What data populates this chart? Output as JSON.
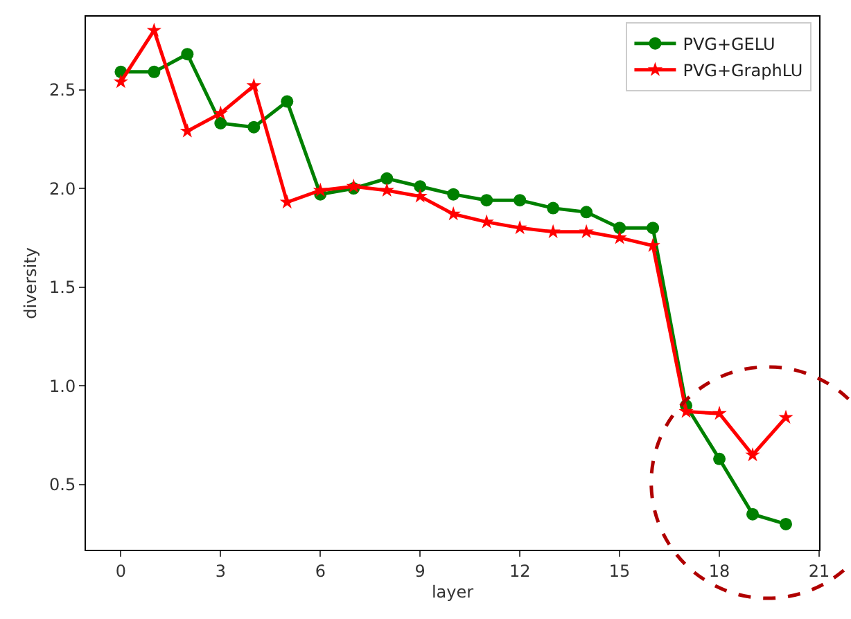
{
  "chart_data": {
    "type": "line",
    "xlabel": "layer",
    "ylabel": "diversity",
    "x": [
      0,
      1,
      2,
      3,
      4,
      5,
      6,
      7,
      8,
      9,
      10,
      11,
      12,
      13,
      14,
      15,
      16,
      17,
      18,
      19,
      20
    ],
    "series": [
      {
        "name": "PVG+GELU",
        "color": "#008000",
        "marker": "circle",
        "values": [
          2.59,
          2.59,
          2.68,
          2.33,
          2.31,
          2.44,
          1.97,
          2.0,
          2.05,
          2.01,
          1.97,
          1.94,
          1.94,
          1.9,
          1.88,
          1.8,
          1.8,
          0.9,
          0.63,
          0.35,
          0.3
        ]
      },
      {
        "name": "PVG+GraphLU",
        "color": "#ff0000",
        "marker": "star",
        "values": [
          2.54,
          2.8,
          2.29,
          2.38,
          2.52,
          1.93,
          1.99,
          2.01,
          1.99,
          1.96,
          1.87,
          1.83,
          1.8,
          1.78,
          1.78,
          1.75,
          1.71,
          0.87,
          0.86,
          0.65,
          0.84
        ]
      }
    ],
    "xlim": [
      -1.05,
      21
    ],
    "xticks": [
      0,
      3,
      6,
      9,
      12,
      15,
      18,
      21
    ],
    "ylim": [
      0.17,
      2.87
    ],
    "yticks": [
      {
        "value": 0.5,
        "label": "0.5"
      },
      {
        "value": 1.0,
        "label": "1.0"
      },
      {
        "value": 1.5,
        "label": "1.5"
      },
      {
        "value": 2.0,
        "label": "2.0"
      },
      {
        "value": 2.5,
        "label": "2.5"
      }
    ],
    "legend": "top right",
    "line_style": "solid"
  }
}
